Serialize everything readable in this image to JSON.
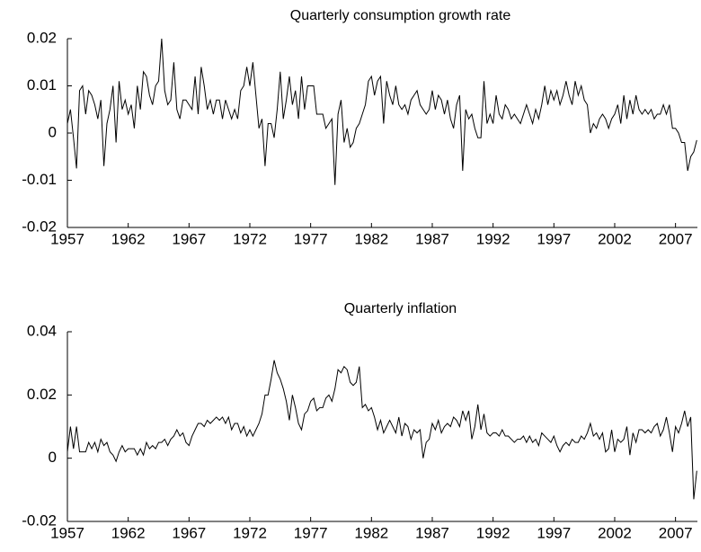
{
  "chart_data": [
    {
      "type": "line",
      "title": "Quarterly consumption growth rate",
      "x": [
        1957,
        1957.25,
        1957.5,
        1957.75,
        1958,
        1958.25,
        1958.5,
        1958.75,
        1959,
        1959.25,
        1959.5,
        1959.75,
        1960,
        1960.25,
        1960.5,
        1960.75,
        1961,
        1961.25,
        1961.5,
        1961.75,
        1962,
        1962.25,
        1962.5,
        1962.75,
        1963,
        1963.25,
        1963.5,
        1963.75,
        1964,
        1964.25,
        1964.5,
        1964.75,
        1965,
        1965.25,
        1965.5,
        1965.75,
        1966,
        1966.25,
        1966.5,
        1966.75,
        1967,
        1967.25,
        1967.5,
        1967.75,
        1968,
        1968.25,
        1968.5,
        1968.75,
        1969,
        1969.25,
        1969.5,
        1969.75,
        1970,
        1970.25,
        1970.5,
        1970.75,
        1971,
        1971.25,
        1971.5,
        1971.75,
        1972,
        1972.25,
        1972.5,
        1972.75,
        1973,
        1973.25,
        1973.5,
        1973.75,
        1974,
        1974.25,
        1974.5,
        1974.75,
        1975,
        1975.25,
        1975.5,
        1975.75,
        1976,
        1976.25,
        1976.5,
        1976.75,
        1977,
        1977.25,
        1977.5,
        1977.75,
        1978,
        1978.25,
        1978.5,
        1978.75,
        1979,
        1979.25,
        1979.5,
        1979.75,
        1980,
        1980.25,
        1980.5,
        1980.75,
        1981,
        1981.25,
        1981.5,
        1981.75,
        1982,
        1982.25,
        1982.5,
        1982.75,
        1983,
        1983.25,
        1983.5,
        1983.75,
        1984,
        1984.25,
        1984.5,
        1984.75,
        1985,
        1985.25,
        1985.5,
        1985.75,
        1986,
        1986.25,
        1986.5,
        1986.75,
        1987,
        1987.25,
        1987.5,
        1987.75,
        1988,
        1988.25,
        1988.5,
        1988.75,
        1989,
        1989.25,
        1989.5,
        1989.75,
        1990,
        1990.25,
        1990.5,
        1990.75,
        1991,
        1991.25,
        1991.5,
        1991.75,
        1992,
        1992.25,
        1992.5,
        1992.75,
        1993,
        1993.25,
        1993.5,
        1993.75,
        1994,
        1994.25,
        1994.5,
        1994.75,
        1995,
        1995.25,
        1995.5,
        1995.75,
        1996,
        1996.25,
        1996.5,
        1996.75,
        1997,
        1997.25,
        1997.5,
        1997.75,
        1998,
        1998.25,
        1998.5,
        1998.75,
        1999,
        1999.25,
        1999.5,
        1999.75,
        2000,
        2000.25,
        2000.5,
        2000.75,
        2001,
        2001.25,
        2001.5,
        2001.75,
        2002,
        2002.25,
        2002.5,
        2002.75,
        2003,
        2003.25,
        2003.5,
        2003.75,
        2004,
        2004.25,
        2004.5,
        2004.75,
        2005,
        2005.25,
        2005.5,
        2005.75,
        2006,
        2006.25,
        2006.5,
        2006.75,
        2007,
        2007.25,
        2007.5,
        2007.75,
        2008,
        2008.25,
        2008.5,
        2008.75
      ],
      "series": [
        {
          "color": "#000000",
          "values": [
            0.002,
            0.005,
            -0.001,
            -0.0075,
            0.009,
            0.01,
            0.004,
            0.009,
            0.008,
            0.006,
            0.003,
            0.007,
            -0.007,
            0.002,
            0.005,
            0.01,
            -0.002,
            0.011,
            0.005,
            0.007,
            0.004,
            0.006,
            0.001,
            0.01,
            0.005,
            0.013,
            0.012,
            0.008,
            0.006,
            0.01,
            0.011,
            0.02,
            0.009,
            0.006,
            0.007,
            0.015,
            0.005,
            0.003,
            0.007,
            0.007,
            0.006,
            0.005,
            0.012,
            0.004,
            0.014,
            0.01,
            0.005,
            0.007,
            0.004,
            0.007,
            0.007,
            0.003,
            0.007,
            0.005,
            0.003,
            0.005,
            0.003,
            0.009,
            0.01,
            0.014,
            0.01,
            0.015,
            0.008,
            0.001,
            0.003,
            -0.007,
            0.002,
            0.002,
            -0.001,
            0.005,
            0.013,
            0.003,
            0.007,
            0.012,
            0.006,
            0.009,
            0.003,
            0.012,
            0.005,
            0.01,
            0.01,
            0.01,
            0.004,
            0.004,
            0.004,
            0.001,
            0.002,
            0.003,
            -0.011,
            0.004,
            0.007,
            -0.002,
            0.001,
            -0.003,
            -0.002,
            0.001,
            0.002,
            0.004,
            0.006,
            0.011,
            0.012,
            0.008,
            0.011,
            0.012,
            0.002,
            0.011,
            0.008,
            0.006,
            0.01,
            0.006,
            0.005,
            0.006,
            0.004,
            0.007,
            0.008,
            0.009,
            0.006,
            0.005,
            0.004,
            0.005,
            0.009,
            0.005,
            0.008,
            0.007,
            0.004,
            0.007,
            0.003,
            0.001,
            0.006,
            0.008,
            -0.008,
            0.005,
            0.003,
            0.004,
            0.001,
            -0.001,
            -0.001,
            0.011,
            0.002,
            0.004,
            0.002,
            0.008,
            0.004,
            0.003,
            0.006,
            0.005,
            0.003,
            0.004,
            0.003,
            0.002,
            0.004,
            0.006,
            0.004,
            0.002,
            0.005,
            0.003,
            0.006,
            0.01,
            0.006,
            0.009,
            0.007,
            0.009,
            0.006,
            0.008,
            0.011,
            0.008,
            0.006,
            0.011,
            0.008,
            0.01,
            0.007,
            0.006,
            0.0,
            0.002,
            0.001,
            0.003,
            0.004,
            0.003,
            0.001,
            0.003,
            0.004,
            0.006,
            0.002,
            0.008,
            0.003,
            0.007,
            0.004,
            0.008,
            0.005,
            0.004,
            0.005,
            0.004,
            0.005,
            0.003,
            0.004,
            0.004,
            0.006,
            0.004,
            0.006,
            0.001,
            0.001,
            0.0,
            -0.002,
            -0.002,
            -0.008,
            -0.005,
            -0.004,
            -0.0015
          ]
        }
      ],
      "xlim": [
        1957,
        2008.8
      ],
      "xticks": [
        1957,
        1962,
        1967,
        1972,
        1977,
        1982,
        1987,
        1992,
        1997,
        2002,
        2007
      ],
      "ylim": [
        -0.02,
        0.02
      ],
      "yticks": [
        0.02,
        0.01,
        0,
        -0.01,
        -0.02
      ]
    },
    {
      "type": "line",
      "title": "Quarterly inflation",
      "x": [
        1957,
        1957.25,
        1957.5,
        1957.75,
        1958,
        1958.25,
        1958.5,
        1958.75,
        1959,
        1959.25,
        1959.5,
        1959.75,
        1960,
        1960.25,
        1960.5,
        1960.75,
        1961,
        1961.25,
        1961.5,
        1961.75,
        1962,
        1962.25,
        1962.5,
        1962.75,
        1963,
        1963.25,
        1963.5,
        1963.75,
        1964,
        1964.25,
        1964.5,
        1964.75,
        1965,
        1965.25,
        1965.5,
        1965.75,
        1966,
        1966.25,
        1966.5,
        1966.75,
        1967,
        1967.25,
        1967.5,
        1967.75,
        1968,
        1968.25,
        1968.5,
        1968.75,
        1969,
        1969.25,
        1969.5,
        1969.75,
        1970,
        1970.25,
        1970.5,
        1970.75,
        1971,
        1971.25,
        1971.5,
        1971.75,
        1972,
        1972.25,
        1972.5,
        1972.75,
        1973,
        1973.25,
        1973.5,
        1973.75,
        1974,
        1974.25,
        1974.5,
        1974.75,
        1975,
        1975.25,
        1975.5,
        1975.75,
        1976,
        1976.25,
        1976.5,
        1976.75,
        1977,
        1977.25,
        1977.5,
        1977.75,
        1978,
        1978.25,
        1978.5,
        1978.75,
        1979,
        1979.25,
        1979.5,
        1979.75,
        1980,
        1980.25,
        1980.5,
        1980.75,
        1981,
        1981.25,
        1981.5,
        1981.75,
        1982,
        1982.25,
        1982.5,
        1982.75,
        1983,
        1983.25,
        1983.5,
        1983.75,
        1984,
        1984.25,
        1984.5,
        1984.75,
        1985,
        1985.25,
        1985.5,
        1985.75,
        1986,
        1986.25,
        1986.5,
        1986.75,
        1987,
        1987.25,
        1987.5,
        1987.75,
        1988,
        1988.25,
        1988.5,
        1988.75,
        1989,
        1989.25,
        1989.5,
        1989.75,
        1990,
        1990.25,
        1990.5,
        1990.75,
        1991,
        1991.25,
        1991.5,
        1991.75,
        1992,
        1992.25,
        1992.5,
        1992.75,
        1993,
        1993.25,
        1993.5,
        1993.75,
        1994,
        1994.25,
        1994.5,
        1994.75,
        1995,
        1995.25,
        1995.5,
        1995.75,
        1996,
        1996.25,
        1996.5,
        1996.75,
        1997,
        1997.25,
        1997.5,
        1997.75,
        1998,
        1998.25,
        1998.5,
        1998.75,
        1999,
        1999.25,
        1999.5,
        1999.75,
        2000,
        2000.25,
        2000.5,
        2000.75,
        2001,
        2001.25,
        2001.5,
        2001.75,
        2002,
        2002.25,
        2002.5,
        2002.75,
        2003,
        2003.25,
        2003.5,
        2003.75,
        2004,
        2004.25,
        2004.5,
        2004.75,
        2005,
        2005.25,
        2005.5,
        2005.75,
        2006,
        2006.25,
        2006.5,
        2006.75,
        2007,
        2007.25,
        2007.5,
        2007.75,
        2008,
        2008.25,
        2008.5,
        2008.75
      ],
      "series": [
        {
          "color": "#000000",
          "values": [
            0.002,
            0.01,
            0.003,
            0.01,
            0.002,
            0.002,
            0.002,
            0.005,
            0.003,
            0.005,
            0.002,
            0.006,
            0.004,
            0.005,
            0.002,
            0.001,
            -0.001,
            0.002,
            0.004,
            0.002,
            0.003,
            0.003,
            0.003,
            0.001,
            0.003,
            0.001,
            0.005,
            0.003,
            0.004,
            0.003,
            0.005,
            0.005,
            0.006,
            0.004,
            0.006,
            0.007,
            0.009,
            0.007,
            0.008,
            0.005,
            0.004,
            0.007,
            0.009,
            0.011,
            0.011,
            0.01,
            0.012,
            0.011,
            0.012,
            0.013,
            0.012,
            0.013,
            0.011,
            0.013,
            0.009,
            0.011,
            0.011,
            0.008,
            0.01,
            0.007,
            0.009,
            0.007,
            0.009,
            0.011,
            0.014,
            0.02,
            0.02,
            0.025,
            0.031,
            0.027,
            0.025,
            0.022,
            0.018,
            0.012,
            0.02,
            0.016,
            0.011,
            0.009,
            0.014,
            0.015,
            0.018,
            0.019,
            0.015,
            0.016,
            0.016,
            0.019,
            0.02,
            0.018,
            0.022,
            0.028,
            0.027,
            0.029,
            0.028,
            0.024,
            0.023,
            0.024,
            0.029,
            0.016,
            0.017,
            0.015,
            0.016,
            0.013,
            0.009,
            0.012,
            0.008,
            0.01,
            0.012,
            0.01,
            0.008,
            0.013,
            0.007,
            0.011,
            0.01,
            0.006,
            0.009,
            0.008,
            0.009,
            0.0,
            0.005,
            0.006,
            0.011,
            0.009,
            0.012,
            0.008,
            0.01,
            0.011,
            0.01,
            0.013,
            0.012,
            0.01,
            0.015,
            0.012,
            0.015,
            0.006,
            0.01,
            0.017,
            0.009,
            0.014,
            0.008,
            0.007,
            0.008,
            0.008,
            0.007,
            0.009,
            0.007,
            0.007,
            0.006,
            0.005,
            0.006,
            0.006,
            0.007,
            0.005,
            0.007,
            0.005,
            0.006,
            0.004,
            0.008,
            0.007,
            0.006,
            0.005,
            0.007,
            0.004,
            0.002,
            0.004,
            0.005,
            0.004,
            0.006,
            0.005,
            0.005,
            0.007,
            0.006,
            0.008,
            0.011,
            0.007,
            0.008,
            0.006,
            0.008,
            0.002,
            0.003,
            0.009,
            0.002,
            0.006,
            0.005,
            0.006,
            0.01,
            0.001,
            0.008,
            0.005,
            0.009,
            0.009,
            0.008,
            0.009,
            0.008,
            0.01,
            0.011,
            0.007,
            0.009,
            0.013,
            0.008,
            0.002,
            0.01,
            0.008,
            0.011,
            0.015,
            0.01,
            0.013,
            -0.013,
            -0.004
          ]
        }
      ],
      "xlim": [
        1957,
        2008.8
      ],
      "xticks": [
        1957,
        1962,
        1967,
        1972,
        1977,
        1982,
        1987,
        1992,
        1997,
        2002,
        2007
      ],
      "ylim": [
        -0.02,
        0.04
      ],
      "yticks": [
        0.04,
        0.02,
        0,
        -0.02
      ]
    }
  ]
}
